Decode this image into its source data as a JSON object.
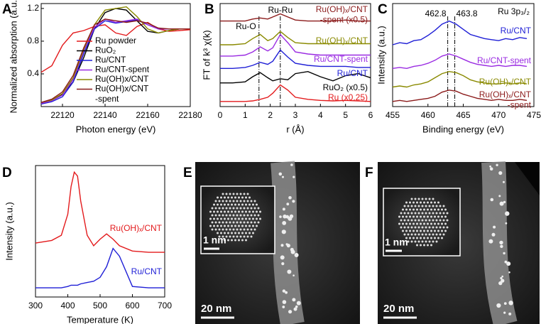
{
  "chart_data": [
    {
      "type": "line",
      "panel": "A",
      "x_label": "Photon energy (eV)",
      "y_label": "Normalized absorption (a.u.)",
      "x": [
        22110,
        22115,
        22120,
        22125,
        22130,
        22135,
        22140,
        22145,
        22150,
        22155,
        22160,
        22165,
        22170,
        22175,
        22180
      ],
      "xlim": [
        22110,
        22180
      ],
      "xticks": [
        22120,
        22140,
        22160,
        22180
      ],
      "ylim": [
        0,
        1.26
      ],
      "yticks": [
        0.4,
        0.8,
        1.2
      ],
      "legend": "lower center",
      "series": [
        {
          "name": "Ru powder",
          "color": "#e31a1c",
          "values": [
            0.42,
            0.5,
            0.75,
            0.9,
            0.93,
            0.98,
            1.0,
            0.9,
            0.87,
            0.98,
            1.03,
            0.95,
            0.92,
            0.93,
            0.94
          ]
        },
        {
          "name": "RuO₂",
          "color": "#000000",
          "values": [
            0.04,
            0.08,
            0.15,
            0.3,
            0.6,
            0.95,
            1.15,
            1.2,
            1.18,
            1.05,
            0.92,
            0.9,
            0.93,
            0.95,
            0.95
          ]
        },
        {
          "name": "Ru/CNT",
          "color": "#1f1fd6",
          "values": [
            0.03,
            0.06,
            0.12,
            0.3,
            0.65,
            0.95,
            1.05,
            1.02,
            1.04,
            1.06,
            1.0,
            0.95,
            0.95,
            0.95,
            0.95
          ]
        },
        {
          "name": "Ru/CNT-spent",
          "color": "#9a2be2",
          "values": [
            0.04,
            0.07,
            0.14,
            0.33,
            0.68,
            0.97,
            1.07,
            1.03,
            1.05,
            1.07,
            1.0,
            0.95,
            0.95,
            0.95,
            0.95
          ]
        },
        {
          "name": "Ru(OH)x/CNT",
          "color": "#8a8a00",
          "values": [
            0.05,
            0.08,
            0.16,
            0.35,
            0.7,
            1.0,
            1.18,
            1.2,
            1.22,
            1.1,
            0.95,
            0.9,
            0.93,
            0.95,
            0.95
          ]
        },
        {
          "name": "Ru(OH)x/CNT\n-spent",
          "color": "#8b1a1a",
          "values": [
            0.05,
            0.09,
            0.18,
            0.38,
            0.72,
            1.0,
            1.07,
            1.05,
            1.03,
            1.05,
            1.02,
            0.96,
            0.95,
            0.95,
            0.95
          ]
        }
      ]
    },
    {
      "type": "line",
      "panel": "B",
      "x_label": "r (Å)",
      "y_label": "FT of k³ χ(k)",
      "x": [
        0,
        0.5,
        1,
        1.3,
        1.6,
        1.9,
        2.1,
        2.4,
        2.7,
        3,
        3.5,
        4,
        4.5,
        5,
        5.5,
        6
      ],
      "xlim": [
        0,
        6
      ],
      "xticks": [
        0,
        1,
        2,
        3,
        4,
        5,
        6
      ],
      "ylim": [
        0,
        10
      ],
      "reference_lines": [
        {
          "value": 1.55,
          "label": "Ru-O"
        },
        {
          "value": 2.4,
          "label": "Ru-Ru"
        }
      ],
      "series": [
        {
          "name": "Ru (x0.25)",
          "color": "#e31a1c",
          "values": [
            0.5,
            0.5,
            0.5,
            0.55,
            0.7,
            0.9,
            1.3,
            2.1,
            1.6,
            0.9,
            0.7,
            0.6,
            0.55,
            0.6,
            0.55,
            0.5
          ]
        },
        {
          "name": "RuO₂ (x0.5)",
          "color": "#000000",
          "values": [
            2.3,
            2.3,
            2.4,
            2.9,
            3.3,
            2.8,
            2.5,
            2.7,
            2.6,
            3.2,
            3.4,
            2.9,
            2.5,
            3.0,
            3.2,
            2.8
          ]
        },
        {
          "name": "Ru/CNT",
          "color": "#1f1fd6",
          "values": [
            3.7,
            3.7,
            3.8,
            4.0,
            4.3,
            4.1,
            4.4,
            5.5,
            4.8,
            4.2,
            4.0,
            3.9,
            3.9,
            3.9,
            3.8,
            3.8
          ]
        },
        {
          "name": "Ru/CNT-spent",
          "color": "#9a2be2",
          "values": [
            4.9,
            4.9,
            5.0,
            5.3,
            5.8,
            5.4,
            5.7,
            7.0,
            6.2,
            5.3,
            5.1,
            5.0,
            5.0,
            5.0,
            5.0,
            5.0
          ]
        },
        {
          "name": "Ru(OH)ₓ/CNT",
          "color": "#8a8a00",
          "values": [
            6.0,
            6.0,
            6.1,
            6.6,
            7.0,
            6.4,
            6.6,
            7.3,
            6.7,
            6.2,
            6.1,
            6.1,
            6.1,
            6.1,
            6.1,
            6.1
          ]
        },
        {
          "name": "Ru(OH)ₓ/CNT\n-spent (x0.5)",
          "color": "#8b1a1a",
          "values": [
            8.3,
            8.3,
            8.3,
            8.5,
            8.6,
            8.5,
            8.7,
            9.0,
            8.7,
            8.4,
            8.3,
            8.3,
            8.3,
            8.4,
            8.3,
            8.3
          ]
        }
      ]
    },
    {
      "type": "line",
      "panel": "C",
      "title": "Ru 3p₃/₂",
      "x_label": "Binding energy (eV)",
      "y_label": "Intensity (a.u.)",
      "x": [
        455,
        456,
        457,
        458,
        459,
        460,
        461,
        462,
        463,
        464,
        465,
        466,
        467,
        468,
        469,
        470,
        471,
        472,
        473,
        474
      ],
      "xlim": [
        455,
        475
      ],
      "xticks": [
        455,
        460,
        465,
        470,
        475
      ],
      "ylim": [
        0,
        10
      ],
      "reference_lines": [
        462.8,
        463.8
      ],
      "series": [
        {
          "name": "Ru/CNT",
          "color": "#1f1fd6",
          "values": [
            6.0,
            6.2,
            6.1,
            6.4,
            6.5,
            6.9,
            7.4,
            8.0,
            8.3,
            8.0,
            7.5,
            7.0,
            6.8,
            6.6,
            6.5,
            6.4,
            6.6,
            6.5,
            6.7,
            6.6
          ]
        },
        {
          "name": "Ru/CNT-spent",
          "color": "#9a2be2",
          "values": [
            3.7,
            3.8,
            3.7,
            3.9,
            4.0,
            4.2,
            4.5,
            4.9,
            5.1,
            4.9,
            4.6,
            4.3,
            4.1,
            4.0,
            3.9,
            4.0,
            3.9,
            4.0,
            4.0,
            3.9
          ]
        },
        {
          "name": "Ru(OH)ₓ/CNT",
          "color": "#8a8a00",
          "values": [
            1.9,
            2.0,
            1.9,
            2.1,
            2.2,
            2.4,
            2.8,
            3.2,
            3.4,
            3.3,
            3.0,
            2.6,
            2.4,
            2.3,
            2.2,
            2.2,
            2.3,
            2.2,
            2.3,
            2.2
          ]
        },
        {
          "name": "Ru(OH)ₓ/CNT\n-spent",
          "color": "#8b1a1a",
          "values": [
            0.5,
            0.6,
            0.5,
            0.6,
            0.7,
            0.8,
            1.0,
            1.4,
            1.6,
            1.5,
            1.2,
            1.0,
            0.8,
            0.7,
            0.6,
            0.7,
            0.6,
            0.6,
            0.7,
            0.6
          ]
        }
      ]
    },
    {
      "type": "line",
      "panel": "D",
      "x_label": "Temperature (K)",
      "y_label": "Intensity (a.u.)",
      "x": [
        300,
        350,
        380,
        400,
        410,
        420,
        430,
        440,
        460,
        480,
        500,
        520,
        540,
        560,
        600,
        650,
        700
      ],
      "xlim": [
        300,
        700
      ],
      "xticks": [
        300,
        400,
        500,
        600,
        700
      ],
      "ylim": [
        0,
        10
      ],
      "series": [
        {
          "name": "Ru(OH)ₓ/CNT",
          "color": "#e31a1c",
          "values": [
            4.1,
            4.3,
            4.7,
            6.3,
            8.4,
            9.5,
            9.2,
            7.3,
            4.7,
            3.9,
            4.4,
            4.8,
            4.4,
            3.9,
            3.5,
            3.4,
            3.4
          ]
        },
        {
          "name": "Ru/CNT",
          "color": "#1f1fd6",
          "values": [
            0.7,
            0.7,
            0.7,
            0.8,
            0.9,
            0.9,
            0.9,
            1.0,
            1.1,
            1.2,
            1.5,
            2.3,
            3.7,
            3.1,
            0.8,
            0.7,
            0.7
          ]
        }
      ]
    }
  ],
  "images": [
    {
      "panel": "E",
      "scale_bar": "20 nm",
      "inset_scale_bar": "1 nm"
    },
    {
      "panel": "F",
      "scale_bar": "20 nm",
      "inset_scale_bar": "1 nm"
    }
  ]
}
